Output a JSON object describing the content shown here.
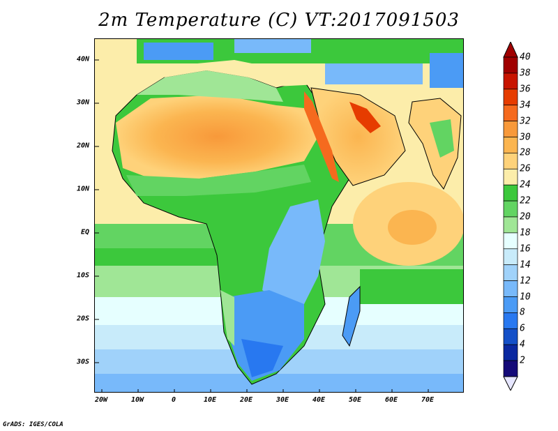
{
  "title": "2m Temperature (C) VT:2017091503",
  "credit": "GrADS: IGES/COLA",
  "map": {
    "latitude_labels": [
      "40N",
      "30N",
      "20N",
      "10N",
      "EQ",
      "10S",
      "20S",
      "30S"
    ],
    "latitude_values": [
      40,
      30,
      20,
      10,
      0,
      -10,
      -20,
      -30
    ],
    "longitude_labels": [
      "20W",
      "10W",
      "0",
      "10E",
      "20E",
      "30E",
      "40E",
      "50E",
      "60E",
      "70E"
    ],
    "longitude_values": [
      -20,
      -10,
      0,
      10,
      20,
      30,
      40,
      50,
      60,
      70
    ],
    "lat_range": [
      -37,
      45
    ],
    "lon_range": [
      -22,
      80
    ],
    "variable": "2m Temperature",
    "units": "C",
    "valid_time": "2017091503"
  },
  "colorbar": {
    "labels": [
      "40",
      "38",
      "36",
      "34",
      "32",
      "30",
      "28",
      "26",
      "24",
      "22",
      "20",
      "18",
      "16",
      "14",
      "12",
      "10",
      "8",
      "6",
      "4",
      "2"
    ],
    "colors": [
      "#a00000",
      "#c81400",
      "#e63c00",
      "#f56a1e",
      "#f8993a",
      "#fbb550",
      "#fed27a",
      "#fcedaa",
      "#3cc83c",
      "#62d462",
      "#a0e696",
      "#e6ffff",
      "#c8ebfa",
      "#a0d2fa",
      "#78b9fa",
      "#4b9bf5",
      "#2878f0",
      "#1450c8",
      "#0a28a0",
      "#140a78"
    ]
  }
}
